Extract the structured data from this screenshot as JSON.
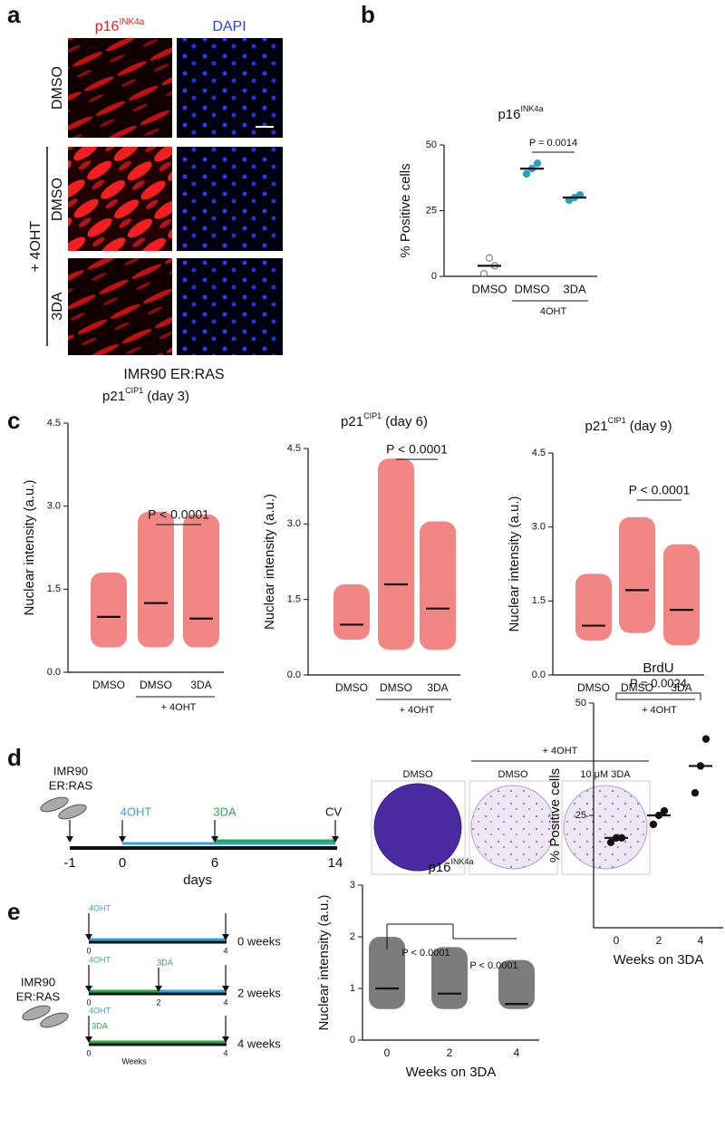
{
  "panels": {
    "a": {
      "label": "a",
      "col1": "p16",
      "col1_sup": "INK4a",
      "col2": "DAPI",
      "rows": [
        "DMSO",
        "DMSO",
        "3DA"
      ],
      "group": "+ 4OHT",
      "caption": "IMR90 ER:RAS"
    },
    "b": {
      "label": "b",
      "title": "p16",
      "title_sup": "INK4a",
      "ylabel": "% Positive cells",
      "categories": [
        "DMSO",
        "DMSO",
        "3DA"
      ],
      "group": "4OHT",
      "ylim": [
        0,
        50
      ],
      "yticks": [
        0,
        25,
        50
      ],
      "colors": [
        "#888888",
        "#2a9fc0",
        "#2a9fc0"
      ],
      "points": [
        [
          1,
          7,
          4
        ],
        [
          39,
          41,
          43
        ],
        [
          29,
          30,
          31
        ]
      ],
      "means": [
        4,
        41,
        30
      ],
      "pvalue": "P = 0.0014"
    },
    "c": {
      "label": "c",
      "charts": [
        {
          "title": "p21",
          "title_sup": "CIP1",
          "title_tail": " (day 3)",
          "ylabel": "Nuclear intensity (a.u.)",
          "categories": [
            "DMSO",
            "DMSO",
            "3DA"
          ],
          "group": "+ 4OHT",
          "ylim": [
            0,
            4.5
          ],
          "yticks": [
            {
              "value": 0,
              "label": "0.0"
            },
            1.5,
            {
              "value": 3,
              "label": "3.0"
            },
            4.5
          ],
          "colors": [
            "#e8231f",
            "#e8231f",
            "#e8231f"
          ],
          "ranges": [
            [
              0.45,
              1.8
            ],
            [
              0.45,
              2.9
            ],
            [
              0.45,
              2.85
            ]
          ],
          "means": [
            1.0,
            1.25,
            0.97
          ],
          "pvalue": "P < 0.0001"
        },
        {
          "title": "p21",
          "title_sup": "CIP1",
          "title_tail": " (day 6)",
          "ylabel": "Nuclear intensity (a.u.)",
          "categories": [
            "DMSO",
            "DMSO",
            "3DA"
          ],
          "group": "+ 4OHT",
          "ylim": [
            0,
            4.5
          ],
          "yticks": [
            {
              "value": 0,
              "label": "0.0"
            },
            1.5,
            {
              "value": 3,
              "label": "3.0"
            },
            4.5
          ],
          "colors": [
            "#e8231f",
            "#e8231f",
            "#e8231f"
          ],
          "ranges": [
            [
              0.7,
              1.8
            ],
            [
              0.5,
              4.3
            ],
            [
              0.5,
              3.05
            ]
          ],
          "means": [
            1.0,
            1.8,
            1.32
          ],
          "pvalue": "P < 0.0001"
        },
        {
          "title": "p21",
          "title_sup": "CIP1",
          "title_tail": " (day 9)",
          "ylabel": "Nuclear intensity (a.u.)",
          "categories": [
            "DMSO",
            "DMSO",
            "3DA"
          ],
          "group": "+ 4OHT",
          "ylim": [
            0,
            4.5
          ],
          "yticks": [
            {
              "value": 0,
              "label": "0.0"
            },
            1.5,
            {
              "value": 3,
              "label": "3.0"
            },
            4.5
          ],
          "colors": [
            "#e8231f",
            "#e8231f",
            "#e8231f"
          ],
          "ranges": [
            [
              0.7,
              2.05
            ],
            [
              0.85,
              3.2
            ],
            [
              0.6,
              2.65
            ]
          ],
          "means": [
            1.0,
            1.72,
            1.32
          ],
          "pvalue": "P < 0.0001"
        }
      ]
    },
    "d": {
      "label": "d",
      "cell_line": [
        "IMR90",
        "ER:RAS"
      ],
      "treat": "4OHT",
      "drug": "3DA",
      "end": "CV",
      "ticks": [
        -1,
        0,
        6,
        14
      ],
      "xlabel": "days",
      "plates": [
        "DMSO",
        "DMSO",
        "10 μM 3DA"
      ],
      "group": "+ 4OHT"
    },
    "e": {
      "label": "e",
      "cell_line": [
        "IMR90",
        "ER:RAS"
      ],
      "treat": "4OHT",
      "drug": "3DA",
      "rows": [
        "0 weeks",
        "2 weeks",
        "4 weeks"
      ],
      "ticks": [
        0,
        2,
        4
      ],
      "axis_label": "Weeks",
      "p16": {
        "title": "p16",
        "title_sup": "INK4a",
        "ylabel": "Nuclear intensity (a.u.)",
        "xlabel": "Weeks on 3DA",
        "categories": [
          "0",
          "2",
          "4"
        ],
        "ylim": [
          0,
          3
        ],
        "yticks": [
          0,
          1,
          2,
          3
        ],
        "colors": [
          "#111111",
          "#111111",
          "#111111"
        ],
        "ranges": [
          [
            0.6,
            2.0
          ],
          [
            0.6,
            1.8
          ],
          [
            0.6,
            1.55
          ]
        ],
        "means": [
          1.0,
          0.9,
          0.7
        ],
        "pvalues": [
          "P < 0.0001",
          "P < 0.0001"
        ]
      },
      "brdu": {
        "title": "BrdU",
        "ylabel": "% Positive cells",
        "xlabel": "Weeks on 3DA",
        "categories": [
          "0",
          "2",
          "4"
        ],
        "ylim": [
          0,
          50
        ],
        "yticks": [
          25,
          50
        ],
        "colors": [
          "#111111",
          "#111111",
          "#111111"
        ],
        "points": [
          [
            19,
            20,
            20
          ],
          [
            23,
            25,
            26
          ],
          [
            30,
            36,
            42
          ]
        ],
        "means": [
          20,
          25,
          36
        ],
        "pvalue": "P = 0.0024"
      }
    }
  }
}
